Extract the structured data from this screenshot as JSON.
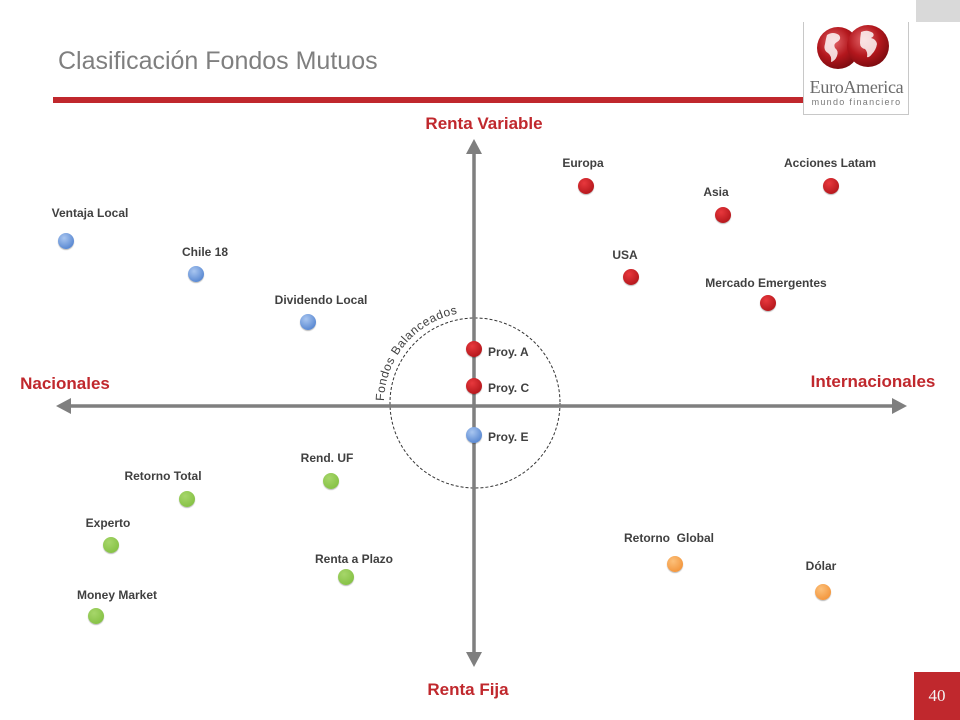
{
  "slide": {
    "title": "Clasificación Fondos Mutuos",
    "page_number": "40"
  },
  "logo": {
    "name": "EuroAmerica",
    "tagline": "mundo financiero",
    "icon": "globe-logo-icon"
  },
  "axes": {
    "top": "Renta Variable",
    "bottom": "Renta Fija",
    "left": "Nacionales",
    "right": "Internacionales"
  },
  "balanced_zone": {
    "label": "Fondos Balanceados"
  },
  "colors": {
    "accent": "#c0282d",
    "axis": "#7f7f7f",
    "text": "#404040",
    "title": "#7f7f7f",
    "red": {
      "light": "#e8383d",
      "dark": "#a50d12"
    },
    "blue": {
      "light": "#a9c6f0",
      "dark": "#3f74c8"
    },
    "green": {
      "light": "#a6d66a",
      "dark": "#7cbb3a"
    },
    "orange": {
      "light": "#fcc07a",
      "dark": "#f0892a"
    }
  },
  "funds": [
    {
      "label": "Europa",
      "category": "red"
    },
    {
      "label": "Acciones Latam",
      "category": "red"
    },
    {
      "label": "Asia",
      "category": "red"
    },
    {
      "label": "USA",
      "category": "red"
    },
    {
      "label": "Mercado Emergentes",
      "category": "red"
    },
    {
      "label": "Ventaja Local",
      "category": "blue"
    },
    {
      "label": "Chile 18",
      "category": "blue"
    },
    {
      "label": "Dividendo Local",
      "category": "blue"
    },
    {
      "label": "Proy. A",
      "category": "red"
    },
    {
      "label": "Proy. C",
      "category": "red"
    },
    {
      "label": "Proy. E",
      "category": "blue"
    },
    {
      "label": "Rend. UF",
      "category": "green"
    },
    {
      "label": "Retorno Total",
      "category": "green"
    },
    {
      "label": "Experto",
      "category": "green"
    },
    {
      "label": "Renta a Plazo",
      "category": "green"
    },
    {
      "label": "Money Market",
      "category": "green"
    },
    {
      "label": "Retorno  Global",
      "category": "orange"
    },
    {
      "label": "Dólar",
      "category": "orange"
    }
  ]
}
